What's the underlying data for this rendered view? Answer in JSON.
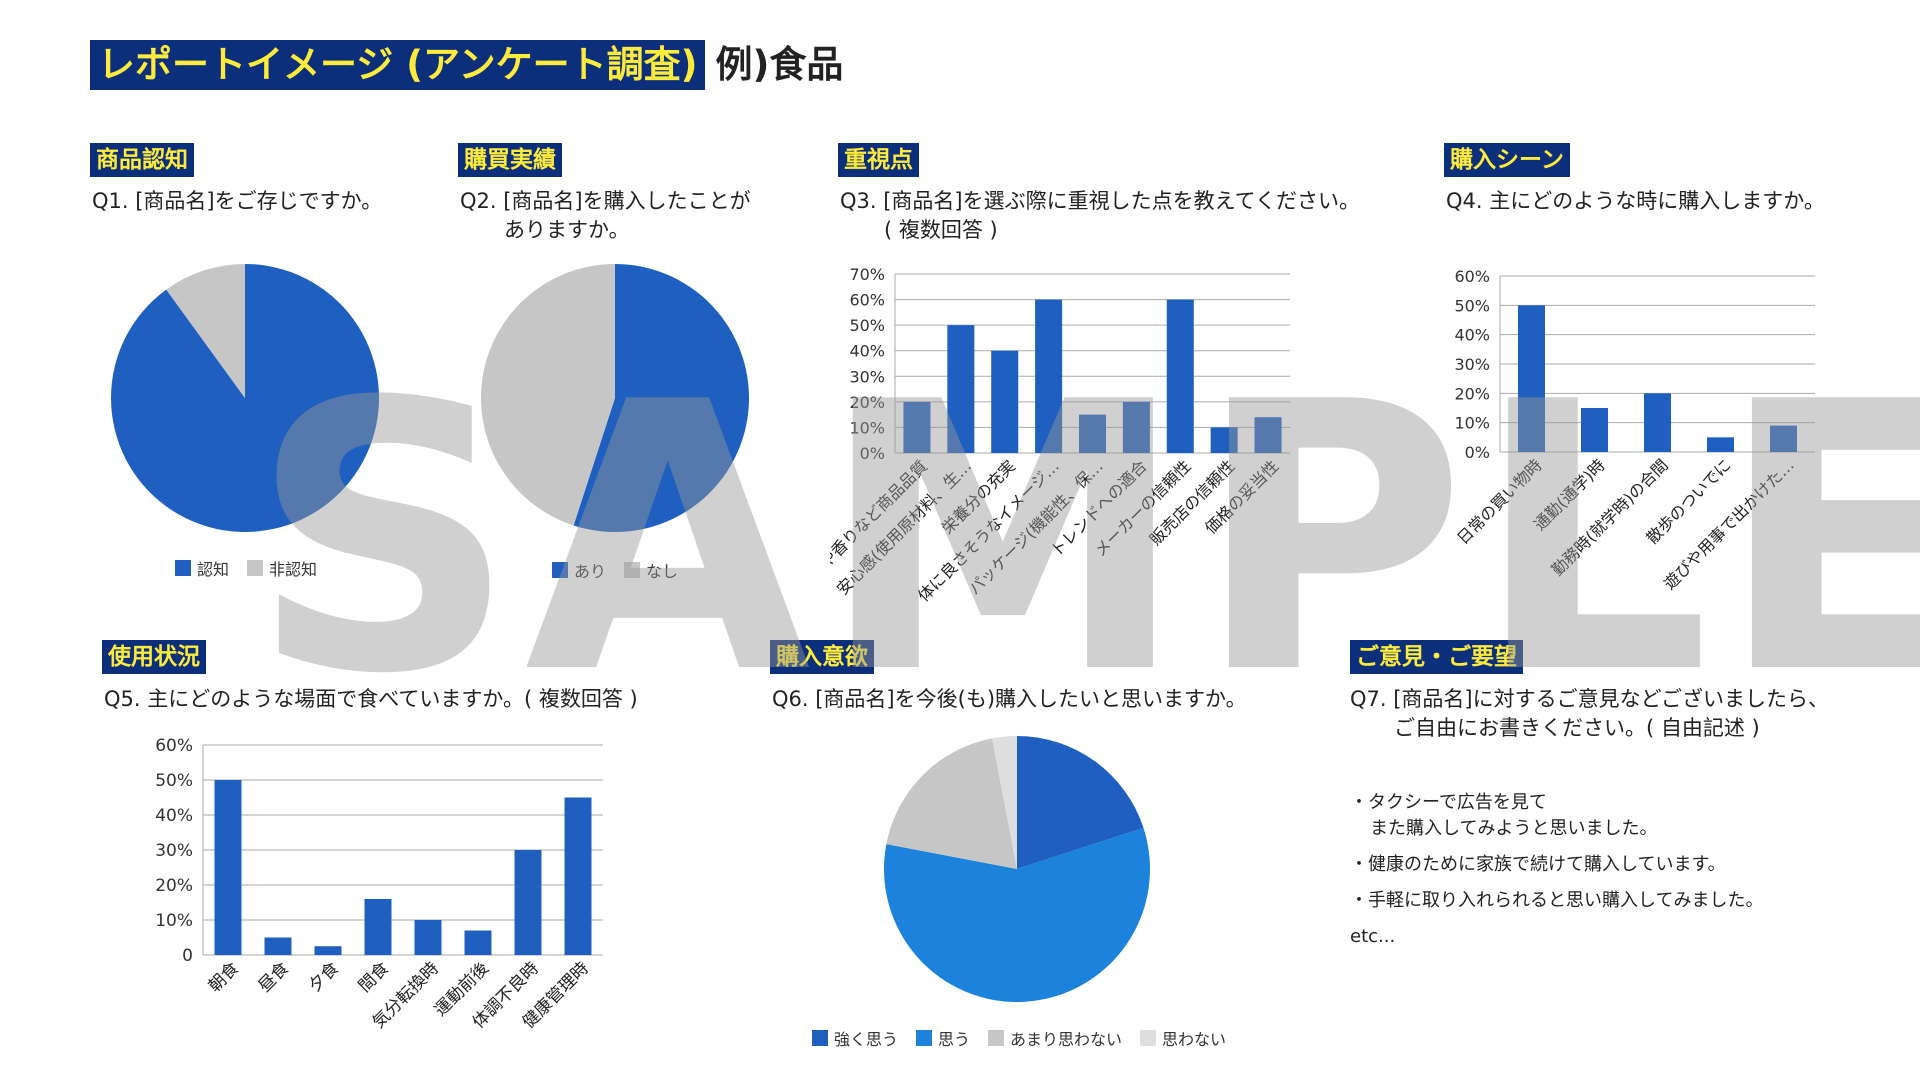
{
  "page": {
    "title_highlight": "レポートイメージ (アンケート調査)",
    "title_rest": "例)食品",
    "watermark": "SAMPLE"
  },
  "sections": {
    "q1": {
      "label": "商品認知",
      "question": "Q1. [商品名]をご存じですか。"
    },
    "q2": {
      "label": "購買実績",
      "question_line1": "Q2. [商品名]を購入したことが",
      "question_line2": "ありますか。"
    },
    "q3": {
      "label": "重視点",
      "question_line1": "Q3. [商品名]を選ぶ際に重視した点を教えてください。",
      "question_line2": "( 複数回答 )"
    },
    "q4": {
      "label": "購入シーン",
      "question": "Q4. 主にどのような時に購入しますか。"
    },
    "q5": {
      "label": "使用状況",
      "question": "Q5. 主にどのような場面で食べていますか。( 複数回答 )"
    },
    "q6": {
      "label": "購入意欲",
      "question": "Q6. [商品名]を今後(も)購入したいと思いますか。"
    },
    "q7": {
      "label": "ご意見・ご要望",
      "question_line1": "Q7. [商品名]に対するご意見などございましたら、",
      "question_line2": "ご自由にお書きください。( 自由記述 )",
      "comments": [
        {
          "line1": "・タクシーで広告を見て",
          "line2": "また購入してみようと思いました。"
        },
        {
          "line1": "・健康のために家族で続けて購入しています。",
          "line2": ""
        },
        {
          "line1": "・手軽に取り入れられると思い購入してみました。",
          "line2": ""
        }
      ],
      "etc": "etc..."
    }
  },
  "colors": {
    "blue_dark": "#1f5fbf",
    "blue_light": "#1c82db",
    "gray": "#c6c6c6",
    "gray_light": "#dedede",
    "label_bg": "#0b2f7a",
    "label_fg": "#ffeb3b",
    "grid": "#aaaaaa"
  },
  "chart_data": [
    {
      "id": "q1",
      "type": "pie",
      "labels": [
        "認知",
        "非認知"
      ],
      "values": [
        90,
        10
      ],
      "colors": [
        "#1f5fbf",
        "#c6c6c6"
      ]
    },
    {
      "id": "q2",
      "type": "pie",
      "labels": [
        "あり",
        "なし"
      ],
      "values": [
        55,
        45
      ],
      "colors": [
        "#1f5fbf",
        "#c6c6c6"
      ]
    },
    {
      "id": "q3",
      "type": "bar",
      "categories": [
        "味や香りなど商品品質",
        "安心感(使用原材料、生…",
        "栄養分の充実",
        "体に良さそうなイメージ…",
        "パッケージ(機能性、保…",
        "トレンドへの適合",
        "メーカーの信頼性",
        "販売店の信頼性",
        "価格の妥当性"
      ],
      "values": [
        20,
        50,
        40,
        60,
        15,
        20,
        60,
        10,
        14
      ],
      "ylim": [
        0,
        70
      ],
      "ticks": [
        "0%",
        "10%",
        "20%",
        "30%",
        "40%",
        "50%",
        "60%",
        "70%"
      ]
    },
    {
      "id": "q4",
      "type": "bar",
      "categories": [
        "日常の買い物時",
        "通勤(通学)時",
        "勤務時(就学時)の合間",
        "散歩のついでに",
        "遊びや用事で出かけた…"
      ],
      "values": [
        50,
        15,
        20,
        5,
        9
      ],
      "ylim": [
        0,
        60
      ],
      "ticks": [
        "0%",
        "10%",
        "20%",
        "30%",
        "40%",
        "50%",
        "60%"
      ]
    },
    {
      "id": "q5",
      "type": "bar",
      "categories": [
        "朝食",
        "昼食",
        "夕食",
        "間食",
        "気分転換時",
        "運動前後",
        "体調不良時",
        "健康管理時"
      ],
      "values": [
        50,
        5,
        2.5,
        16,
        10,
        7,
        30,
        45
      ],
      "ylim": [
        0,
        60
      ],
      "ticks": [
        "0",
        "10%",
        "20%",
        "30%",
        "40%",
        "50%",
        "60%"
      ]
    },
    {
      "id": "q6",
      "type": "pie",
      "labels": [
        "強く思う",
        "思う",
        "あまり思わない",
        "思わない"
      ],
      "values": [
        20,
        58,
        19,
        3
      ],
      "colors": [
        "#1f5fbf",
        "#1c82db",
        "#c6c6c6",
        "#dedede"
      ]
    }
  ]
}
